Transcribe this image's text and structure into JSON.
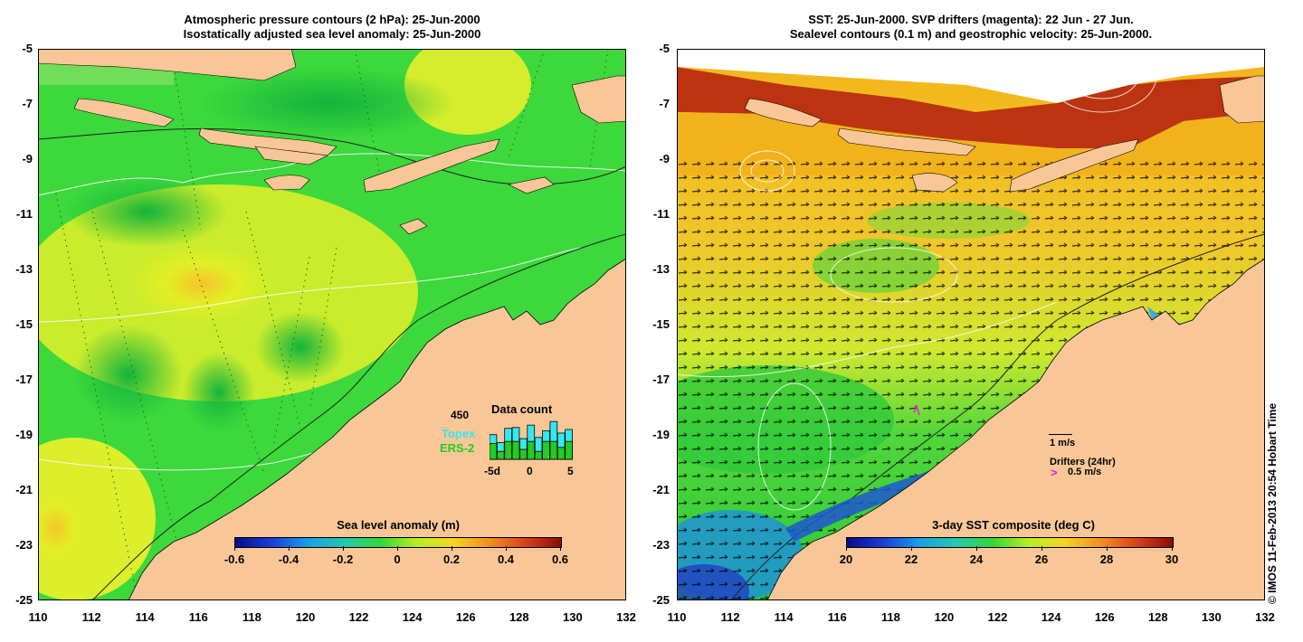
{
  "left": {
    "title_line1": "Atmospheric pressure contours (2 hPa): 25-Jun-2000",
    "title_line2": "Isostatically adjusted sea level anomaly: 25-Jun-2000",
    "colorbar_title": "Sea level anomaly (m)",
    "colorbar_ticks": [
      "-0.6",
      "-0.4",
      "-0.2",
      "0",
      "0.2",
      "0.4",
      "0.6"
    ],
    "inset": {
      "count": "450",
      "title": "Data count",
      "series1": "Topex",
      "series2": "ERS-2",
      "series1_color": "#33e8f0",
      "series2_color": "#22cc22",
      "x_ticks": [
        "-5d",
        "0",
        "5"
      ],
      "topex_values": [
        0.62,
        0.42,
        0.78,
        0.8,
        0.52,
        0.86,
        0.55,
        0.72,
        0.95,
        0.66,
        0.75
      ],
      "ers_values": [
        0.4,
        0.2,
        0.45,
        0.45,
        0.25,
        0.45,
        0.2,
        0.45,
        0.45,
        0.3,
        0.45
      ]
    }
  },
  "right": {
    "title_line1": "SST: 25-Jun-2000. SVP drifters (magenta): 22 Jun - 27 Jun.",
    "title_line2": "Sealevel contours (0.1 m) and geostrophic velocity: 25-Jun-2000.",
    "colorbar_title": "3-day SST composite (deg C)",
    "colorbar_ticks": [
      "20",
      "22",
      "24",
      "26",
      "28",
      "30"
    ],
    "velocity_scale_label": "1 m/s",
    "drifters_label": "Drifters (24hr)",
    "drifters_scale_label": "0.5 m/s",
    "drifter_color": "#e020e0"
  },
  "axes": {
    "lat_ticks": [
      "-5",
      "-7",
      "-9",
      "-11",
      "-13",
      "-15",
      "-17",
      "-19",
      "-21",
      "-23",
      "-25"
    ],
    "lon_ticks": [
      "110",
      "112",
      "114",
      "116",
      "118",
      "120",
      "122",
      "124",
      "126",
      "128",
      "130",
      "132"
    ]
  },
  "colors": {
    "land": "#f9c797",
    "ocean_green": "#33d633",
    "anomaly_yellow": "#e6f224",
    "anomaly_orange": "#f5c42a",
    "sst_warm": "#f3b51b",
    "sst_hot": "#b21f0b",
    "sst_cool": "#1d8ee0"
  },
  "credit": "© IMOS 11-Feb-2013 20:54 Hobart Time"
}
